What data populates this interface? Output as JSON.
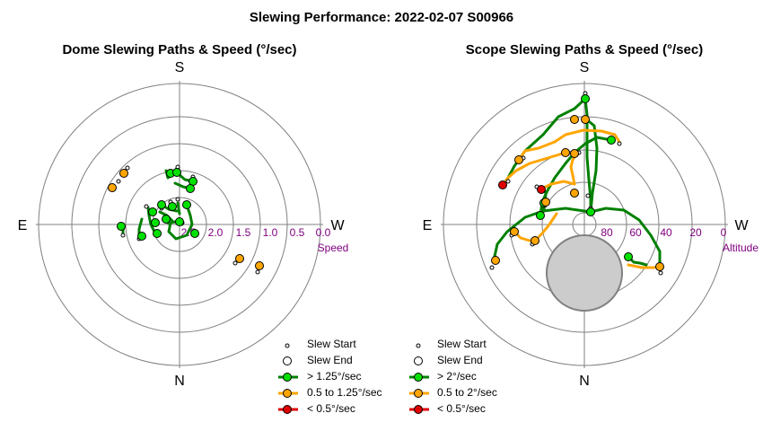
{
  "title": "Slewing Performance: 2022-02-07 S00966",
  "colors": {
    "fast": "#00e000",
    "fast_line": "#008000",
    "mid": "#ffa500",
    "slow": "#e00000",
    "grid": "#808080",
    "tick": "#800080",
    "moon": "#cccccc"
  },
  "chart_data": [
    {
      "type": "polar",
      "title": "Dome Slewing Paths & Speed (°/sec)",
      "directions": {
        "top": "S",
        "bottom": "N",
        "left": "E",
        "right": "W"
      },
      "radial_axis_label": "Speed",
      "radial_ticks": [
        "2.5",
        "2.0",
        "1.5",
        "1.0",
        "0.5",
        "0.0"
      ],
      "radial_range": [
        2.5,
        0.0
      ],
      "legend": [
        {
          "symbol": "start",
          "label": "Slew Start"
        },
        {
          "symbol": "end",
          "label": "Slew End"
        },
        {
          "symbol": "fast",
          "label": "> 1.25°/sec"
        },
        {
          "symbol": "mid",
          "label": "0.5 to 1.25°/sec"
        },
        {
          "symbol": "slow",
          "label": "< 0.5°/sec"
        }
      ],
      "paths": [
        {
          "cls": "fast",
          "pts": [
            [
              185,
              190
            ],
            [
              187,
              198
            ],
            [
              197,
              192
            ]
          ]
        },
        {
          "cls": "fast",
          "pts": [
            [
              199,
              194
            ],
            [
              206,
              200
            ],
            [
              215,
              202
            ]
          ]
        },
        {
          "cls": "fast",
          "pts": [
            [
              195,
              204
            ],
            [
              204,
              208
            ],
            [
              212,
              210
            ]
          ]
        },
        {
          "cls": "fast",
          "pts": [
            [
              180,
              228
            ],
            [
              188,
              233
            ],
            [
              197,
              235
            ]
          ]
        },
        {
          "cls": "fast",
          "pts": [
            [
              178,
              236
            ],
            [
              186,
              240
            ],
            [
              192,
              246
            ]
          ]
        },
        {
          "cls": "fast",
          "pts": [
            [
              208,
              228
            ],
            [
              212,
              240
            ],
            [
              214,
              250
            ],
            [
              208,
              262
            ],
            [
              196,
              266
            ],
            [
              188,
              258
            ],
            [
              190,
              248
            ],
            [
              200,
              246
            ],
            [
              203,
              250
            ]
          ]
        },
        {
          "cls": "fast",
          "pts": [
            [
              165,
              231
            ],
            [
              166,
              240
            ],
            [
              168,
              250
            ],
            [
              172,
              258
            ],
            [
              175,
              261
            ]
          ]
        },
        {
          "cls": "fast",
          "pts": [
            [
              158,
              244
            ],
            [
              155,
              255
            ],
            [
              155,
              263
            ]
          ]
        },
        {
          "cls": "fast",
          "pts": [
            [
              138,
              252
            ],
            [
              137,
              257
            ],
            [
              137,
              260
            ]
          ]
        },
        {
          "cls": "fast",
          "pts": [
            [
              198,
              226
            ],
            [
              200,
              238
            ]
          ]
        },
        {
          "cls": "fast",
          "pts": [
            [
              184,
              244
            ],
            [
              188,
              249
            ]
          ]
        }
      ],
      "ends": [
        {
          "cls": "fast",
          "pt": [
            190,
            193
          ]
        },
        {
          "cls": "fast",
          "pt": [
            197,
            192
          ]
        },
        {
          "cls": "fast",
          "pt": [
            215,
            202
          ]
        },
        {
          "cls": "fast",
          "pt": [
            212,
            210
          ]
        },
        {
          "cls": "fast",
          "pt": [
            180,
            228
          ]
        },
        {
          "cls": "fast",
          "pt": [
            192,
            230
          ]
        },
        {
          "cls": "fast",
          "pt": [
            208,
            228
          ]
        },
        {
          "cls": "fast",
          "pt": [
            170,
            236
          ]
        },
        {
          "cls": "fast",
          "pt": [
            185,
            244
          ]
        },
        {
          "cls": "fast",
          "pt": [
            200,
            247
          ]
        },
        {
          "cls": "fast",
          "pt": [
            173,
            248
          ]
        },
        {
          "cls": "fast",
          "pt": [
            135,
            252
          ]
        },
        {
          "cls": "fast",
          "pt": [
            158,
            263
          ]
        },
        {
          "cls": "fast",
          "pt": [
            217,
            260
          ]
        },
        {
          "cls": "fast",
          "pt": [
            175,
            260
          ]
        },
        {
          "cls": "mid",
          "pt": [
            138,
            193
          ]
        },
        {
          "cls": "mid",
          "pt": [
            125,
            209
          ]
        },
        {
          "cls": "mid",
          "pt": [
            267,
            288
          ]
        },
        {
          "cls": "mid",
          "pt": [
            289,
            296
          ]
        }
      ],
      "starts": [
        [
          198,
          186
        ],
        [
          215,
          197
        ],
        [
          212,
          212
        ],
        [
          190,
          225
        ],
        [
          180,
          232
        ],
        [
          163,
          230
        ],
        [
          198,
          222
        ],
        [
          137,
          262
        ],
        [
          155,
          266
        ],
        [
          142,
          187
        ],
        [
          132,
          202
        ],
        [
          262,
          293
        ],
        [
          287,
          303
        ],
        [
          203,
          248
        ]
      ]
    },
    {
      "type": "polar",
      "title": "Scope Slewing Paths & Speed (°/sec)",
      "directions": {
        "top": "S",
        "bottom": "N",
        "left": "E",
        "right": "W"
      },
      "radial_axis_label": "Altitude",
      "radial_ticks": [
        "80",
        "60",
        "40",
        "20",
        "0"
      ],
      "radial_range": [
        90,
        0
      ],
      "legend": [
        {
          "symbol": "start",
          "label": "Slew Start"
        },
        {
          "symbol": "end",
          "label": "Slew End"
        },
        {
          "symbol": "fast",
          "label": "> 2°/sec"
        },
        {
          "symbol": "mid",
          "label": "0.5 to 2°/sec"
        },
        {
          "symbol": "slow",
          "label": "< 0.5°/sec"
        }
      ],
      "moon": {
        "center": [
          651,
          304
        ],
        "r": 42
      },
      "paths": [
        {
          "cls": "fast",
          "pts": [
            [
              652,
              110
            ],
            [
              640,
              121
            ],
            [
              622,
              130
            ],
            [
              605,
              150
            ],
            [
              585,
              168
            ],
            [
              573,
              185
            ],
            [
              566,
              198
            ],
            [
              560,
              206
            ]
          ]
        },
        {
          "cls": "fast",
          "pts": [
            [
              652,
              110
            ],
            [
              654,
              128
            ],
            [
              654,
              150
            ],
            [
              654,
              175
            ],
            [
              656,
              200
            ],
            [
              658,
              222
            ],
            [
              658,
              236
            ]
          ]
        },
        {
          "cls": "fast",
          "pts": [
            [
              652,
              132
            ],
            [
              662,
              140
            ],
            [
              665,
              165
            ],
            [
              664,
              190
            ],
            [
              660,
              215
            ],
            [
              658,
              236
            ]
          ]
        },
        {
          "cls": "fast",
          "pts": [
            [
              681,
              156
            ],
            [
              665,
              153
            ],
            [
              652,
              160
            ],
            [
              640,
              170
            ],
            [
              630,
              182
            ],
            [
              618,
              198
            ],
            [
              610,
              212
            ],
            [
              604,
              225
            ],
            [
              602,
              240
            ]
          ]
        },
        {
          "cls": "fast",
          "pts": [
            [
              658,
              236
            ],
            [
              675,
              232
            ],
            [
              695,
              234
            ],
            [
              712,
              245
            ],
            [
              725,
              262
            ],
            [
              735,
              280
            ],
            [
              735,
              297
            ]
          ]
        },
        {
          "cls": "fast",
          "pts": [
            [
              658,
              236
            ],
            [
              630,
              232
            ],
            [
              605,
              235
            ],
            [
              585,
              242
            ],
            [
              565,
              258
            ],
            [
              554,
              272
            ],
            [
              550,
              290
            ]
          ]
        },
        {
          "cls": "fast",
          "pts": [
            [
              700,
              286
            ],
            [
              706,
              292
            ],
            [
              713,
              293
            ],
            [
              720,
              295
            ]
          ]
        },
        {
          "cls": "fast",
          "pts": [
            [
              603,
              240
            ],
            [
              607,
              228
            ],
            [
              608,
              215
            ],
            [
              606,
              212
            ]
          ]
        },
        {
          "cls": "mid",
          "pts": [
            [
              690,
              158
            ],
            [
              685,
              150
            ],
            [
              670,
              146
            ],
            [
              650,
              145
            ],
            [
              630,
              150
            ],
            [
              618,
              158
            ]
          ]
        },
        {
          "cls": "mid",
          "pts": [
            [
              618,
              158
            ],
            [
              600,
              165
            ],
            [
              585,
              168
            ],
            [
              578,
              178
            ]
          ]
        },
        {
          "cls": "mid",
          "pts": [
            [
              630,
              170
            ],
            [
              610,
              176
            ],
            [
              590,
              182
            ],
            [
              575,
              190
            ],
            [
              566,
              198
            ],
            [
              560,
              206
            ]
          ]
        },
        {
          "cls": "mid",
          "pts": [
            [
              642,
              172
            ],
            [
              638,
              178
            ],
            [
              636,
              186
            ],
            [
              638,
              195
            ],
            [
              640,
              205
            ]
          ]
        },
        {
          "cls": "mid",
          "pts": [
            [
              640,
              205
            ],
            [
              628,
              202
            ],
            [
              614,
              205
            ],
            [
              604,
              210
            ]
          ]
        },
        {
          "cls": "mid",
          "pts": [
            [
              573,
              258
            ],
            [
              580,
              265
            ],
            [
              590,
              268
            ],
            [
              596,
              268
            ]
          ]
        },
        {
          "cls": "mid",
          "pts": [
            [
              620,
              238
            ],
            [
              612,
              250
            ],
            [
              604,
              260
            ],
            [
              596,
              268
            ]
          ]
        },
        {
          "cls": "mid",
          "pts": [
            [
              700,
              295
            ],
            [
              715,
              298
            ],
            [
              728,
              298
            ],
            [
              735,
              297
            ]
          ]
        },
        {
          "cls": "slow",
          "pts": [
            [
              560,
              206
            ],
            [
              563,
              204
            ]
          ]
        }
      ],
      "ends": [
        {
          "cls": "fast",
          "pt": [
            652,
            110
          ]
        },
        {
          "cls": "fast",
          "pt": [
            681,
            156
          ]
        },
        {
          "cls": "fast",
          "pt": [
            658,
            236
          ]
        },
        {
          "cls": "fast",
          "pt": [
            602,
            240
          ]
        },
        {
          "cls": "fast",
          "pt": [
            606,
            226
          ]
        },
        {
          "cls": "fast",
          "pt": [
            700,
            286
          ]
        },
        {
          "cls": "mid",
          "pt": [
            640,
            133
          ]
        },
        {
          "cls": "mid",
          "pt": [
            652,
            133
          ]
        },
        {
          "cls": "mid",
          "pt": [
            578,
            178
          ]
        },
        {
          "cls": "mid",
          "pt": [
            630,
            170
          ]
        },
        {
          "cls": "mid",
          "pt": [
            640,
            171
          ]
        },
        {
          "cls": "mid",
          "pt": [
            640,
            215
          ]
        },
        {
          "cls": "mid",
          "pt": [
            608,
            225
          ]
        },
        {
          "cls": "mid",
          "pt": [
            573,
            258
          ]
        },
        {
          "cls": "mid",
          "pt": [
            596,
            268
          ]
        },
        {
          "cls": "mid",
          "pt": [
            552,
            290
          ]
        },
        {
          "cls": "mid",
          "pt": [
            735,
            297
          ]
        },
        {
          "cls": "slow",
          "pt": [
            560,
            206
          ]
        },
        {
          "cls": "slow",
          "pt": [
            603,
            211
          ]
        }
      ],
      "starts": [
        [
          652,
          104
        ],
        [
          690,
          160
        ],
        [
          645,
          170
        ],
        [
          655,
          218
        ],
        [
          598,
          208
        ],
        [
          566,
          202
        ],
        [
          583,
          176
        ],
        [
          570,
          262
        ],
        [
          593,
          272
        ],
        [
          548,
          298
        ],
        [
          736,
          304
        ],
        [
          658,
          232
        ]
      ]
    }
  ]
}
